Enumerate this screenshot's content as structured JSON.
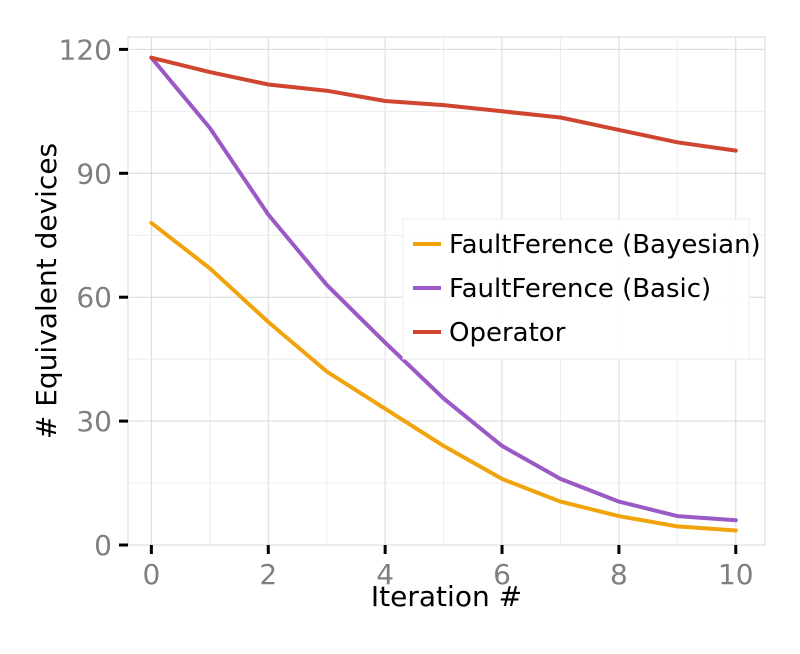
{
  "chart_data": {
    "type": "line",
    "xlabel": "Iteration #",
    "ylabel": "# Equivalent devices",
    "x": [
      0,
      1,
      2,
      3,
      4,
      5,
      6,
      7,
      8,
      9,
      10
    ],
    "xlim": [
      -0.4,
      10.5
    ],
    "ylim": [
      0,
      123
    ],
    "xticks": [
      0,
      2,
      4,
      6,
      8,
      10
    ],
    "yticks": [
      0,
      30,
      60,
      90,
      120
    ],
    "grid": true,
    "legend_position": "right-center",
    "series": [
      {
        "name": "FaultFerence (Bayesian)",
        "color": "#f0a30a",
        "values": [
          78,
          67,
          54,
          42,
          33,
          24,
          16,
          10.5,
          7,
          4.5,
          3.5
        ]
      },
      {
        "name": "FaultFerence (Basic)",
        "color": "#9b59c6",
        "values": [
          118,
          101,
          80,
          63,
          49,
          35.5,
          24,
          16,
          10.5,
          7,
          6
        ]
      },
      {
        "name": "Operator",
        "color": "#d0452f",
        "values": [
          118,
          114.5,
          111.5,
          110,
          107.5,
          106.5,
          105,
          103.5,
          100.5,
          97.5,
          95.5
        ]
      }
    ]
  }
}
